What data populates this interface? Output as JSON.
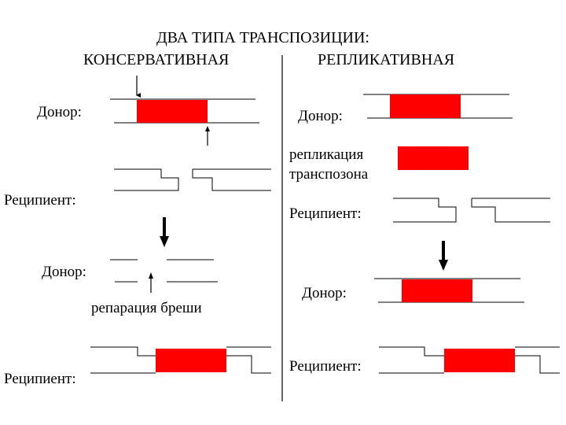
{
  "title": "ДВА ТИПА ТРАНСПОЗИЦИИ:",
  "conservative": {
    "heading": "КОНСЕРВАТИВНАЯ",
    "donor_label": "Донор:",
    "recipient_label": "Реципиент:",
    "donor_after_label": "Донор:",
    "repair_label": "репарация бреши",
    "recipient_final_label": "Реципиент:"
  },
  "replicative": {
    "heading": "РЕПЛИКАТИВНАЯ",
    "donor_label": "Донор:",
    "replication_label_line1": "репликация",
    "replication_label_line2": "транспозона",
    "recipient_label": "Реципиент:",
    "donor_after_label": "Донор:",
    "recipient_final_label": "Реципиент:"
  },
  "colors": {
    "transposon": "#ff0000",
    "line": "#000000"
  }
}
